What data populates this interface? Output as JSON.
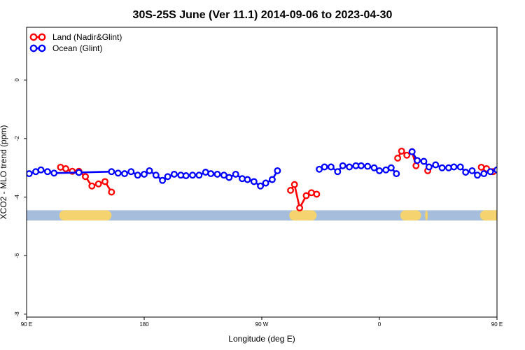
{
  "chart_data": {
    "type": "line",
    "title": "30S-25S June (Ver 11.1)   2014-09-06 to 2023-04-30",
    "xlabel": "Longitude (deg E)",
    "ylabel": "XCO2 - MLO trend (ppm)",
    "xlim": [
      90,
      450
    ],
    "ylim": [
      -8.1,
      1.8
    ],
    "x_ticks": [
      {
        "value": 90,
        "label": "90 E"
      },
      {
        "value": 180,
        "label": "180"
      },
      {
        "value": 270,
        "label": "90 W"
      },
      {
        "value": 360,
        "label": "0"
      },
      {
        "value": 450,
        "label": "90 E"
      },
      {
        "value": 540,
        "label": "180"
      }
    ],
    "y_ticks": [
      {
        "value": 0,
        "label": "0"
      },
      {
        "value": -2,
        "label": "-2"
      },
      {
        "value": -4,
        "label": "-4"
      },
      {
        "value": -6,
        "label": "-6"
      },
      {
        "value": -8,
        "label": "-8"
      }
    ],
    "legend": {
      "position": "top-left"
    },
    "series": [
      {
        "name": "Land (Nadir&Glint)",
        "color": "#ff0000",
        "segments": [
          [
            [
              116,
              -2.98
            ],
            [
              120,
              -3.03
            ],
            [
              125,
              -3.12
            ],
            [
              130,
              -3.12
            ],
            [
              135,
              -3.3
            ],
            [
              140,
              -3.62
            ],
            [
              145,
              -3.55
            ],
            [
              150,
              -3.47
            ],
            [
              155,
              -3.83
            ]
          ],
          [
            [
              292,
              -3.77
            ],
            [
              295,
              -3.57
            ],
            [
              299,
              -4.37
            ],
            [
              304,
              -3.95
            ],
            [
              308,
              -3.85
            ],
            [
              312,
              -3.9
            ]
          ],
          [
            [
              374,
              -2.67
            ],
            [
              377,
              -2.43
            ],
            [
              381,
              -2.57
            ],
            [
              385,
              -2.45
            ],
            [
              388,
              -2.93
            ]
          ],
          [
            [
              397,
              -3.1
            ]
          ],
          [
            [
              438,
              -2.98
            ],
            [
              442,
              -3.03
            ],
            [
              447,
              -3.13
            ],
            [
              452,
              -3.13
            ],
            [
              456,
              -3.3
            ],
            [
              461,
              -3.62
            ],
            [
              466,
              -3.55
            ],
            [
              470,
              -3.47
            ],
            [
              475,
              -3.83
            ]
          ]
        ]
      },
      {
        "name": "Ocean (Glint)",
        "color": "#0000ff",
        "segments": [
          [
            [
              92,
              -3.2
            ],
            [
              97,
              -3.13
            ],
            [
              101,
              -3.07
            ],
            [
              106,
              -3.13
            ],
            [
              111,
              -3.18
            ],
            [
              130,
              -3.16
            ],
            [
              155,
              -3.13
            ],
            [
              160,
              -3.18
            ],
            [
              165,
              -3.2
            ],
            [
              170,
              -3.13
            ],
            [
              175,
              -3.25
            ],
            [
              180,
              -3.22
            ],
            [
              184,
              -3.1
            ],
            [
              189,
              -3.25
            ],
            [
              194,
              -3.43
            ],
            [
              198,
              -3.3
            ],
            [
              203,
              -3.22
            ],
            [
              208,
              -3.25
            ],
            [
              212,
              -3.27
            ],
            [
              217,
              -3.25
            ],
            [
              222,
              -3.25
            ],
            [
              227,
              -3.15
            ],
            [
              231,
              -3.2
            ],
            [
              236,
              -3.22
            ],
            [
              241,
              -3.25
            ],
            [
              245,
              -3.33
            ],
            [
              250,
              -3.22
            ],
            [
              255,
              -3.37
            ],
            [
              259,
              -3.4
            ],
            [
              264,
              -3.47
            ],
            [
              269,
              -3.62
            ],
            [
              273,
              -3.52
            ],
            [
              278,
              -3.4
            ],
            [
              282,
              -3.1
            ]
          ],
          [
            [
              314,
              -3.05
            ],
            [
              318,
              -2.97
            ],
            [
              323,
              -2.97
            ],
            [
              328,
              -3.13
            ],
            [
              332,
              -2.93
            ],
            [
              337,
              -2.97
            ],
            [
              342,
              -2.93
            ],
            [
              346,
              -2.93
            ],
            [
              351,
              -2.95
            ],
            [
              356,
              -3.0
            ],
            [
              360,
              -3.1
            ],
            [
              365,
              -3.07
            ],
            [
              369,
              -3.0
            ],
            [
              373,
              -3.2
            ]
          ],
          [
            [
              385,
              -2.45
            ],
            [
              389,
              -2.75
            ],
            [
              394,
              -2.78
            ],
            [
              398,
              -2.97
            ],
            [
              403,
              -2.9
            ],
            [
              408,
              -3.0
            ],
            [
              413,
              -3.0
            ],
            [
              417,
              -2.97
            ],
            [
              422,
              -2.97
            ],
            [
              426,
              -3.15
            ],
            [
              431,
              -3.1
            ],
            [
              435,
              -3.25
            ],
            [
              440,
              -3.2
            ],
            [
              445,
              -3.13
            ],
            [
              450,
              -3.07
            ],
            [
              455,
              -3.13
            ],
            [
              459,
              -3.18
            ]
          ],
          [
            [
              477,
              -3.13
            ],
            [
              481,
              -3.18
            ],
            [
              486,
              -3.2
            ],
            [
              490,
              -3.13
            ],
            [
              495,
              -3.25
            ],
            [
              500,
              -3.22
            ]
          ]
        ]
      }
    ],
    "surface_band": {
      "y_top": -4.45,
      "y_bottom": -4.8,
      "base_color": "#a6bddb",
      "land_color": "#f5d36e",
      "land_ranges": [
        [
          115,
          155
        ],
        [
          291,
          312
        ],
        [
          376,
          392
        ],
        [
          395,
          397
        ],
        [
          437,
          477
        ]
      ]
    }
  }
}
